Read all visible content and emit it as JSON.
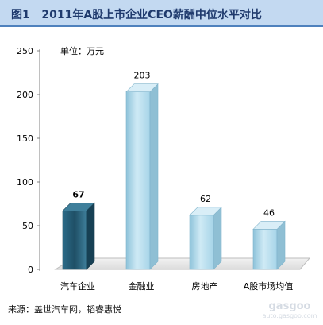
{
  "header": {
    "figure_label": "图1",
    "title": "2011年A股上市企业CEO薪酬中位水平对比"
  },
  "unit_label": "单位：万元",
  "source": "来源：盖世汽车网，韬睿惠悦",
  "watermark": {
    "logo": "gasgoo",
    "url": "auto.gasgoo.com"
  },
  "colors": {
    "title_bg": "#c3d9f1",
    "title_border": "#4f81bd",
    "bar_dark": "#2e6b8a",
    "bar_light": "#b8def0"
  },
  "chart_data": {
    "type": "bar",
    "categories": [
      "汽车企业",
      "金融业",
      "房地产",
      "A股市场均值"
    ],
    "values": [
      67,
      203,
      62,
      46
    ],
    "data_labels": [
      "67",
      "203",
      "62",
      "46"
    ],
    "ylim": [
      0,
      250
    ],
    "yticks": [
      0,
      50,
      100,
      150,
      200,
      250
    ],
    "grid": false,
    "legend": "none"
  }
}
